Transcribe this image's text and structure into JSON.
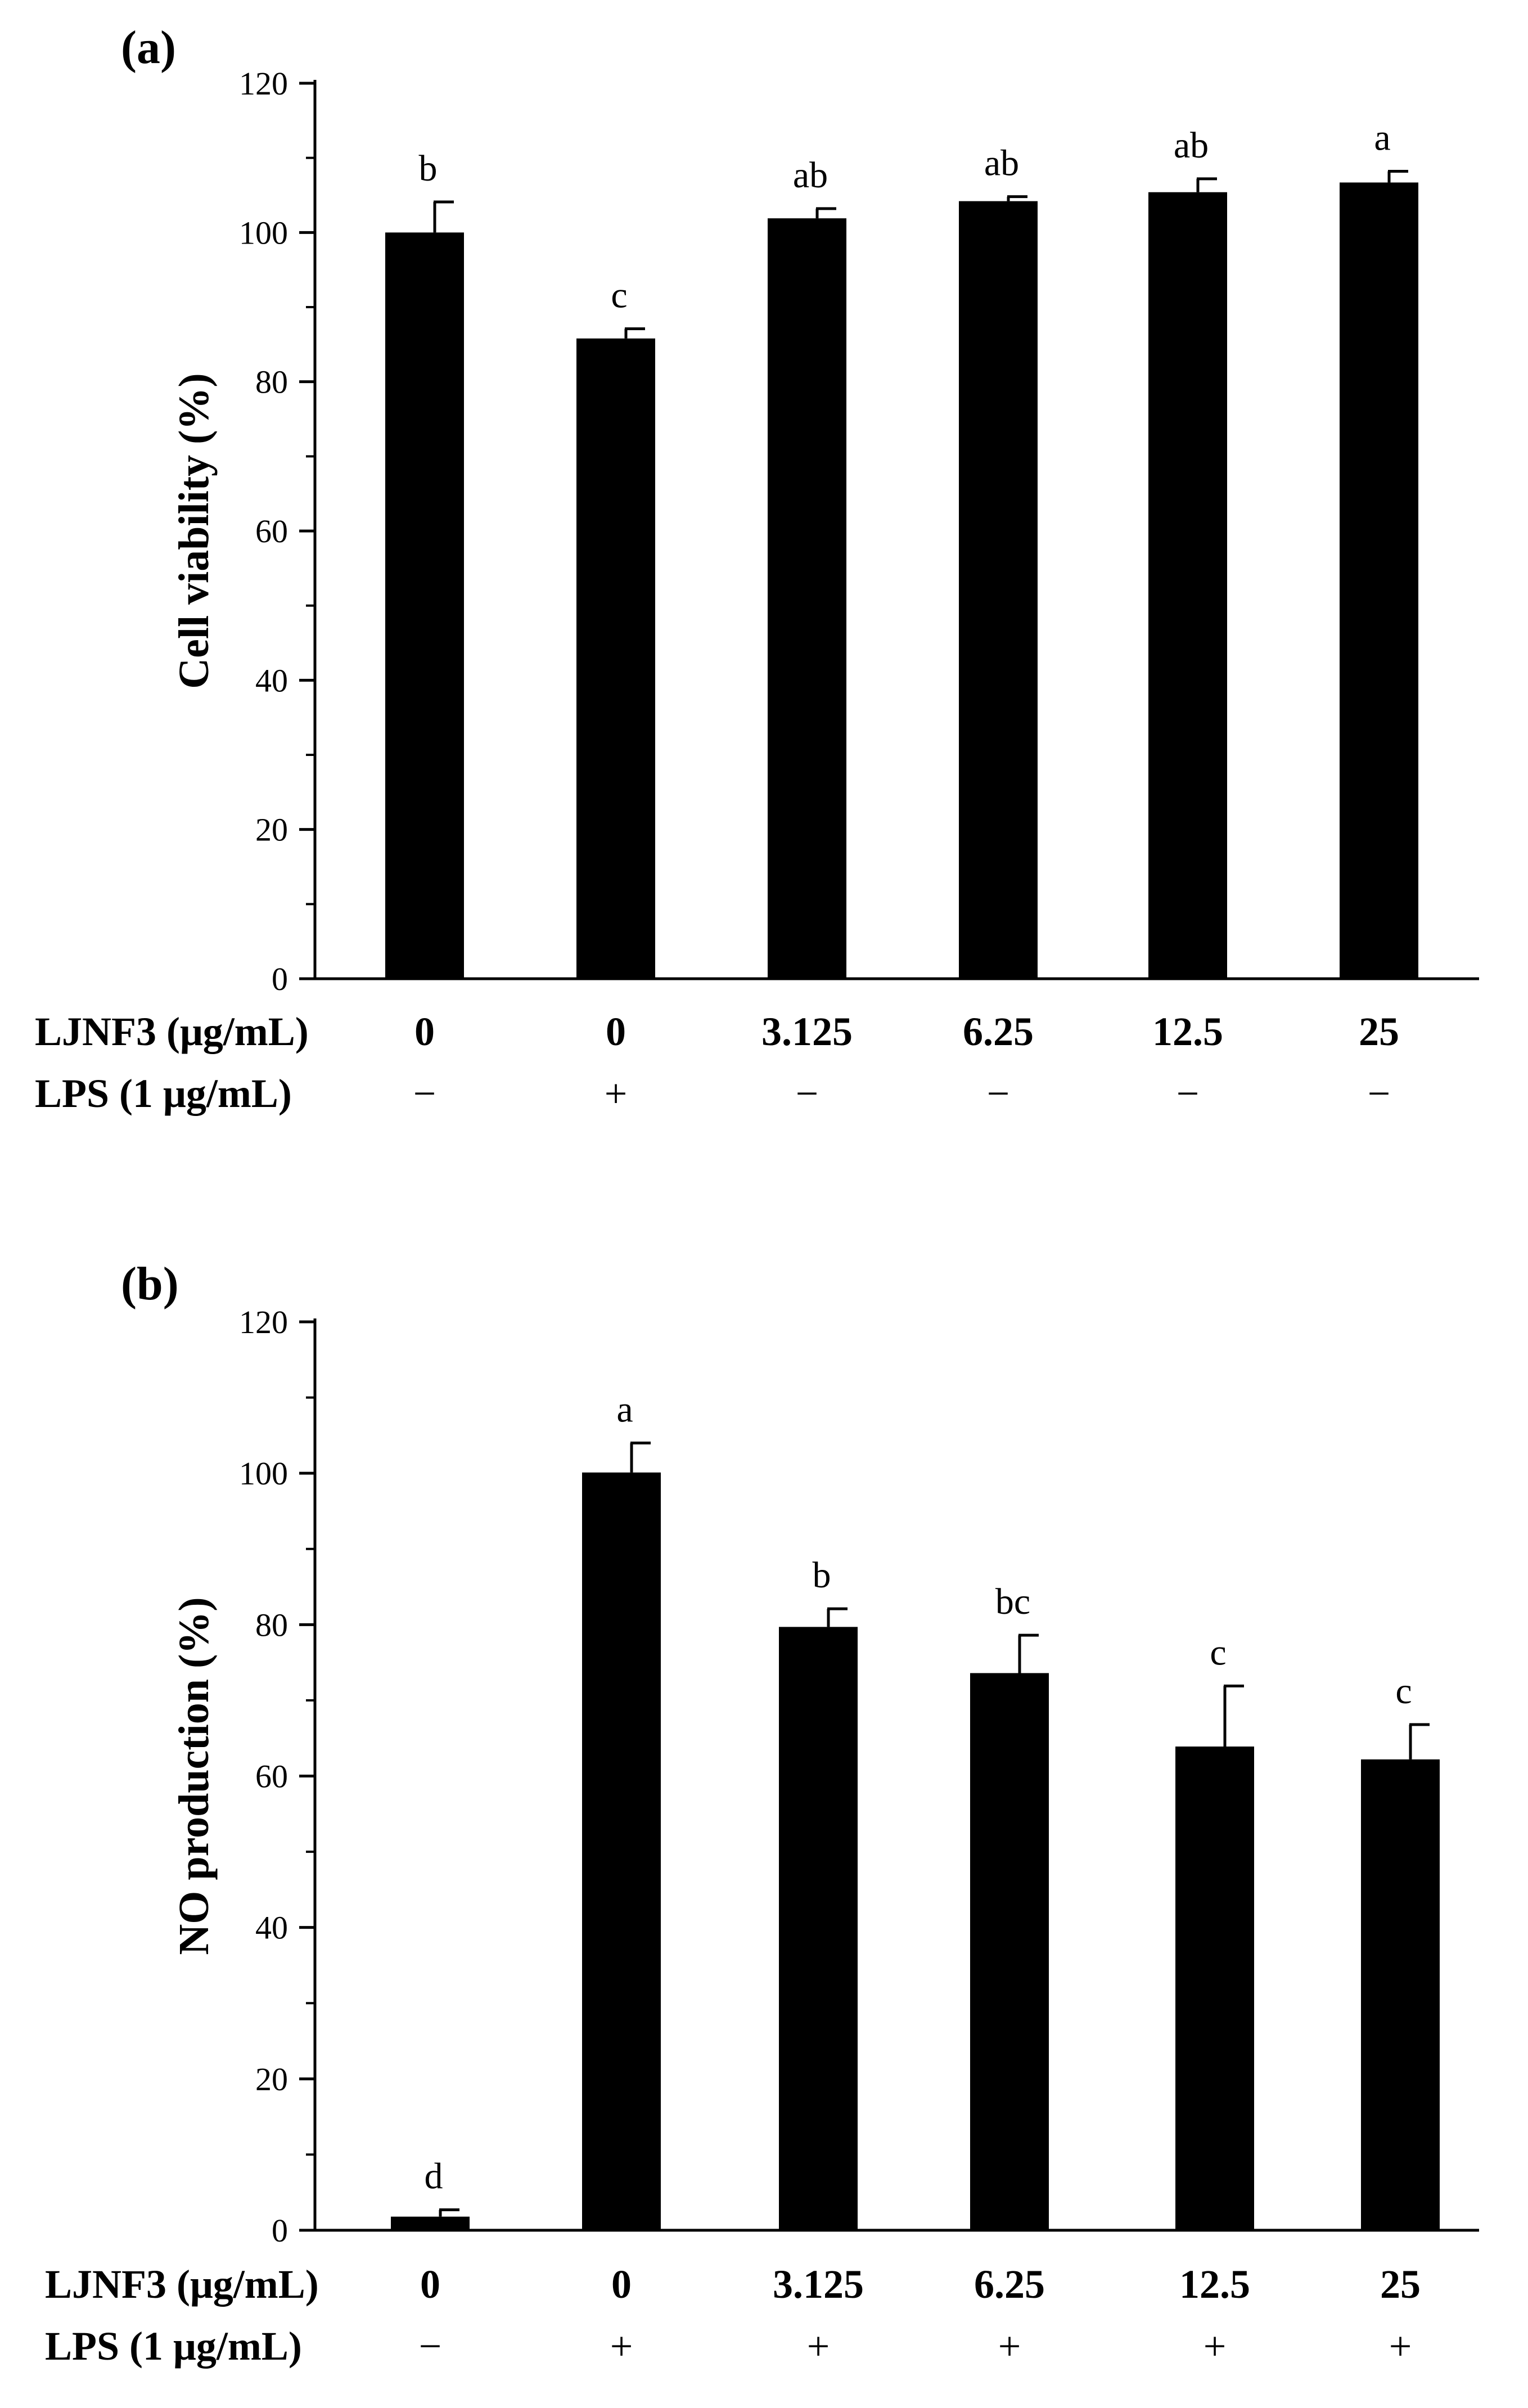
{
  "chart_data": [
    {
      "type": "bar",
      "panel_label": "(a)",
      "ylabel": "Cell viability (%)",
      "xlabel": "",
      "ylim": [
        0,
        120
      ],
      "yticks": [
        0,
        20,
        40,
        60,
        80,
        100,
        120
      ],
      "ytick_labels": [
        "0",
        "20",
        "40",
        "60",
        "80",
        "100",
        "120"
      ],
      "grid": false,
      "row_labels": {
        "treatment": "LJNF3 (μg/mL)",
        "lps": "LPS (1 μg/mL)"
      },
      "categories": [
        "0",
        "0",
        "3.125",
        "6.25",
        "12.5",
        "25"
      ],
      "lps": [
        "−",
        "+",
        "−",
        "−",
        "−",
        "−"
      ],
      "values": [
        100,
        85.8,
        101.9,
        104.2,
        105.4,
        106.7
      ],
      "errors": [
        4.1,
        1.3,
        1.3,
        0.6,
        1.8,
        1.5
      ],
      "significance": [
        "b",
        "c",
        "ab",
        "ab",
        "ab",
        "a"
      ],
      "bar_color": "#000000"
    },
    {
      "type": "bar",
      "panel_label": "(b)",
      "ylabel": "NO production (%)",
      "xlabel": "",
      "ylim": [
        0,
        120
      ],
      "yticks": [
        0,
        20,
        40,
        60,
        80,
        100,
        120
      ],
      "ytick_labels": [
        "0",
        "20",
        "40",
        "60",
        "80",
        "100",
        "120"
      ],
      "grid": false,
      "row_labels": {
        "treatment": "LJNF3 (μg/mL)",
        "lps": "LPS (1 μg/mL)"
      },
      "categories": [
        "0",
        "0",
        "3.125",
        "6.25",
        "12.5",
        "25"
      ],
      "lps": [
        "−",
        "+",
        "+",
        "+",
        "+",
        "+"
      ],
      "values": [
        1.8,
        100.1,
        79.7,
        73.6,
        63.9,
        62.2
      ],
      "errors": [
        0.9,
        3.9,
        2.4,
        5.0,
        8.0,
        4.6
      ],
      "significance": [
        "d",
        "a",
        "b",
        "bc",
        "c",
        "c"
      ],
      "bar_color": "#000000"
    }
  ]
}
